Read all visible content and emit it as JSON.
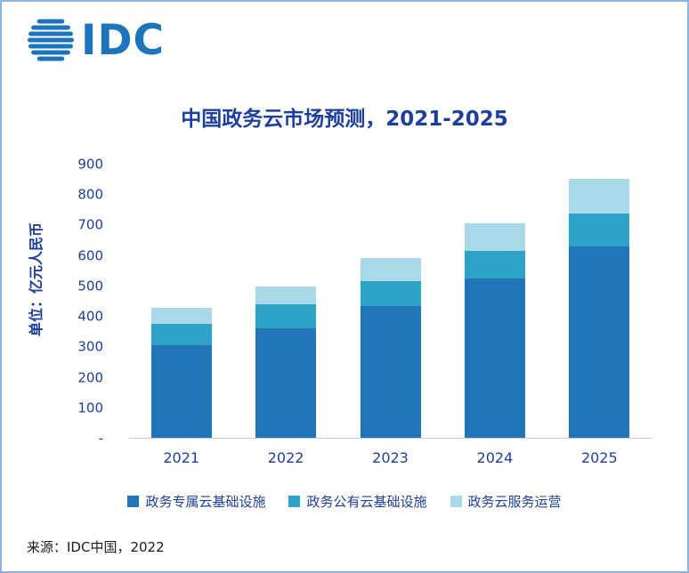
{
  "logo": {
    "text": "IDC"
  },
  "title": "中国政务云市场预测，2021-2025",
  "y_axis_label": "单位：亿元人民币",
  "source": "来源：IDC中国，2022",
  "palette": {
    "border": "#8DB4E2",
    "text_navy": "#1D3E9E",
    "logo_blue": "#1C75BC",
    "source_text": "#1A1A1A"
  },
  "chart_data": {
    "type": "bar",
    "stacked": true,
    "title": "中国政务云市场预测，2021-2025",
    "xlabel": "",
    "ylabel": "单位：亿元人民币",
    "ylim": [
      0,
      900
    ],
    "grid": false,
    "legend_position": "bottom",
    "categories": [
      "2021",
      "2022",
      "2023",
      "2024",
      "2025"
    ],
    "series": [
      {
        "name": "政务专属云基础设施",
        "color": "#2074B7",
        "values": [
          305,
          362,
          435,
          525,
          630
        ]
      },
      {
        "name": "政务公有云基础设施",
        "color": "#2FA3C6",
        "values": [
          70,
          78,
          82,
          90,
          110
        ]
      },
      {
        "name": "政务云服务运营",
        "color": "#A9D9E8",
        "values": [
          53,
          58,
          76,
          92,
          112
        ]
      }
    ],
    "totals": [
      428,
      498,
      593,
      707,
      852
    ],
    "yticks": [
      {
        "label": "-",
        "value": 0
      },
      {
        "label": "100",
        "value": 100
      },
      {
        "label": "200",
        "value": 200
      },
      {
        "label": "300",
        "value": 300
      },
      {
        "label": "400",
        "value": 400
      },
      {
        "label": "500",
        "value": 500
      },
      {
        "label": "600",
        "value": 600
      },
      {
        "label": "700",
        "value": 700
      },
      {
        "label": "800",
        "value": 800
      },
      {
        "label": "900",
        "value": 900
      }
    ]
  }
}
